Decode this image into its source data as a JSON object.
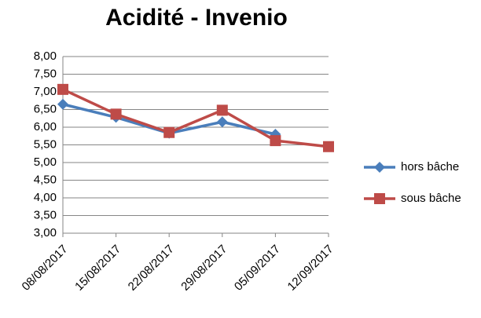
{
  "chart_data": {
    "type": "line",
    "title": "Acidité - Invenio",
    "categories": [
      "08/08/2017",
      "15/08/2017",
      "22/08/2017",
      "29/08/2017",
      "05/09/2017",
      "12/09/2017"
    ],
    "series": [
      {
        "name": "hors bâche",
        "color": "#4a7ebb",
        "marker": "diamond",
        "values": [
          6.65,
          6.28,
          5.83,
          6.15,
          5.8,
          null
        ]
      },
      {
        "name": "sous bâche",
        "color": "#be4b48",
        "marker": "square",
        "values": [
          7.07,
          6.37,
          5.85,
          6.48,
          5.62,
          5.45
        ]
      }
    ],
    "ylim": [
      3,
      8
    ],
    "yticks": [
      {
        "value": 3,
        "label": "3,00"
      },
      {
        "value": 3.5,
        "label": "3,50"
      },
      {
        "value": 4,
        "label": "4,00"
      },
      {
        "value": 4.5,
        "label": "4,50"
      },
      {
        "value": 5,
        "label": "5,00"
      },
      {
        "value": 5.5,
        "label": "5,50"
      },
      {
        "value": 6,
        "label": "6,00"
      },
      {
        "value": 6.5,
        "label": "6,50"
      },
      {
        "value": 7,
        "label": "7,00"
      },
      {
        "value": 7.5,
        "label": "7,50"
      },
      {
        "value": 8,
        "label": "8,00"
      }
    ],
    "grid": true,
    "legend": "right"
  }
}
